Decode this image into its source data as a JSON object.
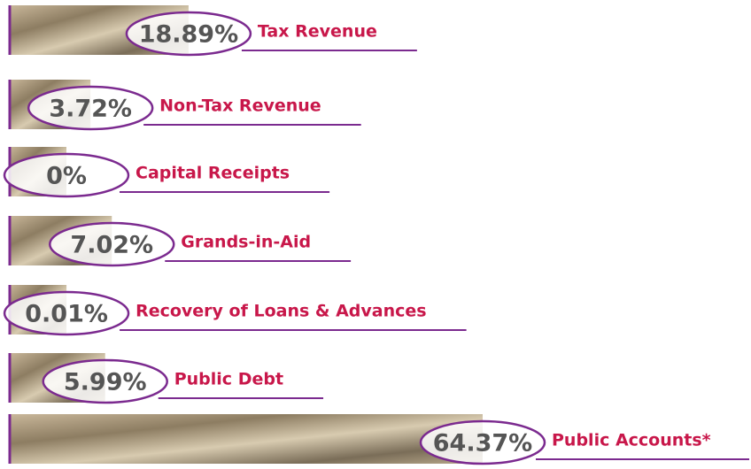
{
  "chart_data": {
    "type": "bar",
    "orientation": "horizontal",
    "categories": [
      "Tax Revenue",
      "Non-Tax Revenue",
      "Capital Receipts",
      "Grands-in-Aid",
      "Recovery of Loans & Advances",
      "Public Debt",
      "Public Accounts*"
    ],
    "values": [
      18.89,
      3.72,
      0,
      7.02,
      0.01,
      5.99,
      64.37
    ],
    "value_labels": [
      "18.89%",
      "3.72%",
      "0%",
      "7.02%",
      "0.01%",
      "5.99%",
      "64.37%"
    ],
    "color": "#9a8a6e",
    "outline_color": "#7b2a8f",
    "label_color": "#c8174a"
  }
}
